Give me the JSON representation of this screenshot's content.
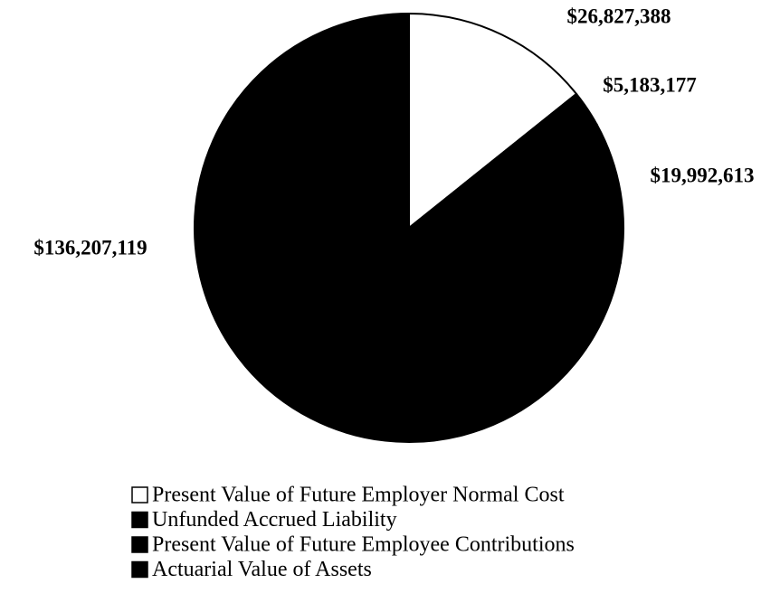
{
  "chart_data": {
    "type": "pie",
    "categories": [
      "Present Value of Future Employer Normal Cost",
      "Unfunded Accrued Liability",
      "Present Value of Future Employee Contributions",
      "Actuarial Value of Assets"
    ],
    "values": [
      26827388,
      5183177,
      19992613,
      136207119
    ],
    "value_labels": [
      "$26,827,388",
      "$5,183,177",
      "$19,992,613",
      "$136,207,119"
    ],
    "colors": [
      "#ffffff",
      "#000000",
      "#000000",
      "#000000"
    ],
    "legend": "bottom"
  }
}
